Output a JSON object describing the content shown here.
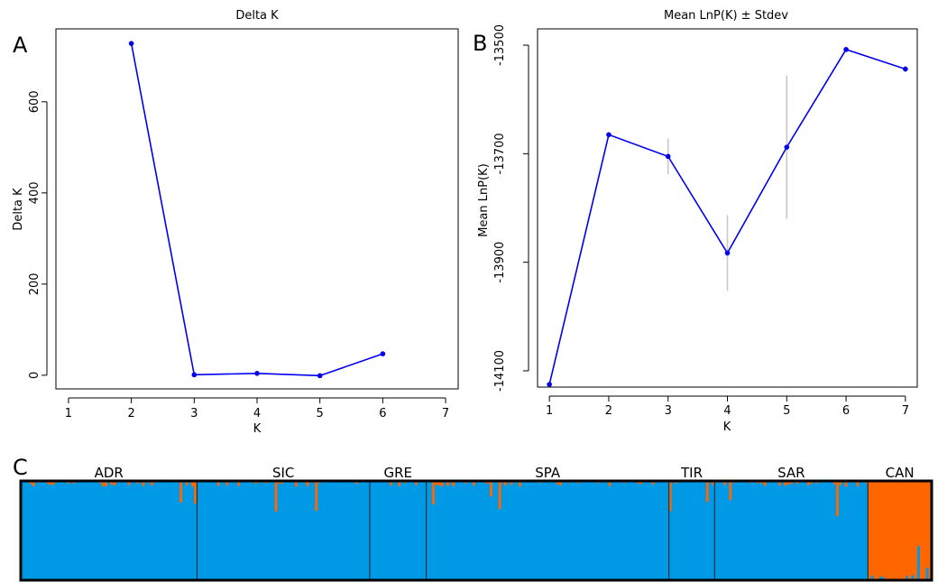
{
  "panel_labels": {
    "a": "A",
    "b": "B",
    "c": "C"
  },
  "colors": {
    "line": "#0000ee",
    "errbar": "#c8c8c8",
    "cluster1": "#0099e6",
    "cluster2": "#ff6600"
  },
  "chart_data": [
    {
      "type": "line",
      "title": "Delta K",
      "xlabel": "K",
      "ylabel": "Delta K",
      "xlim": [
        0.8,
        7.2
      ],
      "ylim": [
        -30,
        760
      ],
      "xticks": [
        "1",
        "2",
        "3",
        "4",
        "5",
        "6",
        "7"
      ],
      "yticks": [
        "0",
        "200",
        "400",
        "600"
      ],
      "x": [
        2,
        3,
        4,
        5,
        6
      ],
      "y": [
        728,
        1,
        4,
        -1,
        47
      ]
    },
    {
      "type": "line",
      "title": "Mean LnP(K) ± Stdev",
      "xlabel": "K",
      "ylabel": "Mean LnP(K)",
      "xlim": [
        0.8,
        7.2
      ],
      "ylim": [
        -14130,
        -13470
      ],
      "xticks": [
        "1",
        "2",
        "3",
        "4",
        "5",
        "6",
        "7"
      ],
      "yticks": [
        "-14100",
        "-13900",
        "-13700",
        "-13500"
      ],
      "x": [
        1,
        2,
        3,
        4,
        5,
        6,
        7
      ],
      "y": [
        -14125,
        -13665,
        -13705,
        -13883,
        -13688,
        -13508,
        -13544
      ],
      "stdev": [
        1,
        3,
        33,
        70,
        132,
        3,
        6
      ]
    },
    {
      "type": "bar",
      "subtype": "stacked-admixture",
      "groups": [
        "ADR",
        "SIC",
        "GRE",
        "SPA",
        "TIR",
        "SAR",
        "CAN"
      ],
      "group_fractions": [
        0.1935,
        0.1896,
        0.0621,
        0.2664,
        0.0501,
        0.1683,
        0.07
      ],
      "series": [
        {
          "color": "cluster1",
          "dominant_groups": [
            "ADR",
            "SIC",
            "GRE",
            "SPA",
            "TIR",
            "SAR"
          ]
        },
        {
          "color": "cluster2",
          "dominant_groups": [
            "CAN"
          ]
        }
      ]
    }
  ]
}
